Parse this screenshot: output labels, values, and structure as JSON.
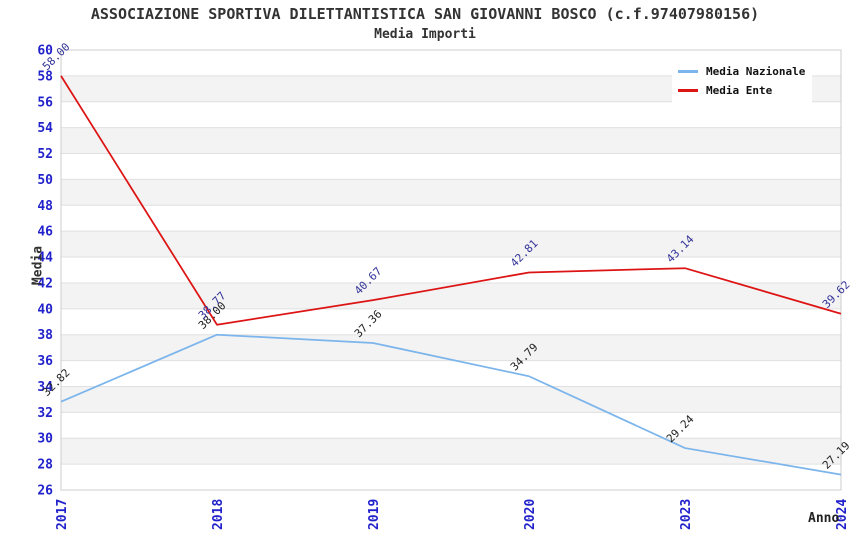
{
  "header": {
    "title": "ASSOCIAZIONE SPORTIVA DILETTANTISTICA SAN GIOVANNI BOSCO (c.f.97407980156)",
    "subtitle": "Media Importi"
  },
  "chart_data": {
    "type": "line",
    "categories": [
      "2017",
      "2018",
      "2019",
      "2020",
      "2023",
      "2024"
    ],
    "series": [
      {
        "name": "Media Nazionale",
        "color": "#7cb5ec",
        "label_color": "#222222",
        "values": [
          32.82,
          38.0,
          37.36,
          34.79,
          29.24,
          27.19
        ]
      },
      {
        "name": "Media Ente",
        "color": "#dd1414",
        "label_color": "#333399",
        "values": [
          58.0,
          38.77,
          40.67,
          42.81,
          43.14,
          39.62
        ]
      }
    ],
    "xlabel": "Anno",
    "ylabel": "Media",
    "ylim": [
      26,
      60
    ],
    "ytick_step": 2,
    "grid": true,
    "legend_position": "top-right",
    "value_decimals": 2,
    "colors": {
      "tick_label": "#2222cc",
      "grid_line": "#e0e0e0",
      "plot_border": "#cccccc",
      "band_even": "#ffffff",
      "band_odd": "#f3f3f3"
    }
  }
}
